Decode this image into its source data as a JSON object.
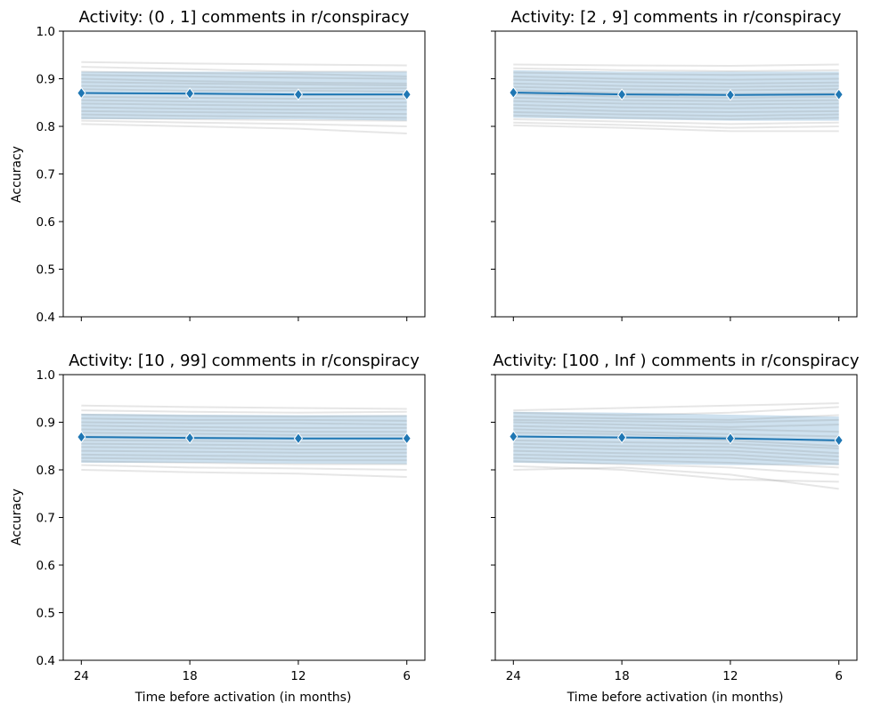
{
  "figure": {
    "xlabel": "Time before activation (in months)",
    "ylabel": "Accuracy",
    "x_ticks": [
      24,
      18,
      12,
      6
    ],
    "y_ticks": [
      "0.4",
      "0.5",
      "0.6",
      "0.7",
      "0.8",
      "0.9",
      "1.0"
    ],
    "ylim": [
      0.4,
      1.0
    ],
    "colors": {
      "mean": "#1f77b4",
      "band": "#1f77b4",
      "individual": "#808080"
    }
  },
  "chart_data": [
    {
      "type": "line",
      "title": "Activity: (0  , 1] comments in r/conspiracy",
      "x": [
        24,
        18,
        12,
        6
      ],
      "mean": [
        0.87,
        0.869,
        0.867,
        0.867
      ],
      "band_lower": [
        0.815,
        0.815,
        0.815,
        0.812
      ],
      "band_upper": [
        0.915,
        0.915,
        0.915,
        0.915
      ],
      "individual_series": [
        [
          0.935,
          0.932,
          0.93,
          0.928
        ],
        [
          0.925,
          0.92,
          0.915,
          0.915
        ],
        [
          0.915,
          0.912,
          0.91,
          0.905
        ],
        [
          0.908,
          0.905,
          0.902,
          0.9
        ],
        [
          0.9,
          0.895,
          0.892,
          0.89
        ],
        [
          0.893,
          0.89,
          0.888,
          0.886
        ],
        [
          0.885,
          0.883,
          0.88,
          0.88
        ],
        [
          0.878,
          0.875,
          0.875,
          0.873
        ],
        [
          0.87,
          0.868,
          0.866,
          0.866
        ],
        [
          0.862,
          0.86,
          0.858,
          0.858
        ],
        [
          0.855,
          0.852,
          0.85,
          0.85
        ],
        [
          0.848,
          0.845,
          0.843,
          0.842
        ],
        [
          0.84,
          0.837,
          0.835,
          0.835
        ],
        [
          0.832,
          0.83,
          0.828,
          0.826
        ],
        [
          0.825,
          0.822,
          0.82,
          0.818
        ],
        [
          0.818,
          0.815,
          0.813,
          0.812
        ],
        [
          0.812,
          0.808,
          0.805,
          0.8
        ],
        [
          0.805,
          0.8,
          0.795,
          0.785
        ]
      ]
    },
    {
      "type": "line",
      "title": "Activity: [2  , 9] comments in r/conspiracy",
      "x": [
        24,
        18,
        12,
        6
      ],
      "mean": [
        0.871,
        0.867,
        0.866,
        0.867
      ],
      "band_lower": [
        0.818,
        0.815,
        0.812,
        0.812
      ],
      "band_upper": [
        0.918,
        0.915,
        0.915,
        0.915
      ],
      "individual_series": [
        [
          0.93,
          0.928,
          0.927,
          0.93
        ],
        [
          0.922,
          0.918,
          0.916,
          0.918
        ],
        [
          0.913,
          0.91,
          0.908,
          0.91
        ],
        [
          0.905,
          0.9,
          0.898,
          0.9
        ],
        [
          0.898,
          0.893,
          0.89,
          0.892
        ],
        [
          0.89,
          0.885,
          0.883,
          0.885
        ],
        [
          0.883,
          0.878,
          0.876,
          0.878
        ],
        [
          0.876,
          0.87,
          0.868,
          0.87
        ],
        [
          0.868,
          0.862,
          0.86,
          0.862
        ],
        [
          0.86,
          0.855,
          0.853,
          0.855
        ],
        [
          0.853,
          0.848,
          0.846,
          0.848
        ],
        [
          0.845,
          0.84,
          0.838,
          0.84
        ],
        [
          0.838,
          0.832,
          0.83,
          0.832
        ],
        [
          0.83,
          0.825,
          0.822,
          0.825
        ],
        [
          0.823,
          0.818,
          0.815,
          0.818
        ],
        [
          0.815,
          0.81,
          0.805,
          0.808
        ],
        [
          0.808,
          0.803,
          0.797,
          0.8
        ],
        [
          0.802,
          0.797,
          0.79,
          0.79
        ]
      ]
    },
    {
      "type": "line",
      "title": "Activity: [10  , 99] comments in r/conspiracy",
      "x": [
        24,
        18,
        12,
        6
      ],
      "mean": [
        0.869,
        0.867,
        0.866,
        0.866
      ],
      "band_lower": [
        0.815,
        0.815,
        0.813,
        0.812
      ],
      "band_upper": [
        0.918,
        0.916,
        0.915,
        0.915
      ],
      "individual_series": [
        [
          0.935,
          0.932,
          0.93,
          0.928
        ],
        [
          0.925,
          0.922,
          0.92,
          0.922
        ],
        [
          0.916,
          0.913,
          0.912,
          0.913
        ],
        [
          0.908,
          0.905,
          0.905,
          0.903
        ],
        [
          0.9,
          0.898,
          0.898,
          0.895
        ],
        [
          0.893,
          0.89,
          0.888,
          0.888
        ],
        [
          0.885,
          0.883,
          0.88,
          0.88
        ],
        [
          0.878,
          0.876,
          0.873,
          0.873
        ],
        [
          0.87,
          0.868,
          0.866,
          0.866
        ],
        [
          0.862,
          0.861,
          0.858,
          0.858
        ],
        [
          0.855,
          0.853,
          0.851,
          0.851
        ],
        [
          0.848,
          0.846,
          0.843,
          0.843
        ],
        [
          0.84,
          0.838,
          0.836,
          0.836
        ],
        [
          0.832,
          0.83,
          0.828,
          0.828
        ],
        [
          0.825,
          0.823,
          0.82,
          0.82
        ],
        [
          0.818,
          0.815,
          0.812,
          0.812
        ],
        [
          0.81,
          0.805,
          0.803,
          0.8
        ],
        [
          0.8,
          0.795,
          0.792,
          0.785
        ]
      ]
    },
    {
      "type": "line",
      "title": "Activity: [100  , Inf ) comments in r/conspiracy",
      "x": [
        24,
        18,
        12,
        6
      ],
      "mean": [
        0.87,
        0.868,
        0.866,
        0.862
      ],
      "band_lower": [
        0.815,
        0.812,
        0.81,
        0.81
      ],
      "band_upper": [
        0.922,
        0.92,
        0.916,
        0.912
      ],
      "individual_series": [
        [
          0.925,
          0.93,
          0.935,
          0.94
        ],
        [
          0.92,
          0.915,
          0.92,
          0.932
        ],
        [
          0.912,
          0.908,
          0.905,
          0.915
        ],
        [
          0.905,
          0.902,
          0.9,
          0.905
        ],
        [
          0.9,
          0.895,
          0.89,
          0.895
        ],
        [
          0.892,
          0.888,
          0.885,
          0.88
        ],
        [
          0.885,
          0.88,
          0.875,
          0.87
        ],
        [
          0.878,
          0.875,
          0.868,
          0.86
        ],
        [
          0.87,
          0.868,
          0.862,
          0.85
        ],
        [
          0.862,
          0.858,
          0.855,
          0.845
        ],
        [
          0.855,
          0.85,
          0.848,
          0.835
        ],
        [
          0.848,
          0.843,
          0.84,
          0.828
        ],
        [
          0.84,
          0.835,
          0.832,
          0.82
        ],
        [
          0.832,
          0.828,
          0.825,
          0.812
        ],
        [
          0.825,
          0.82,
          0.815,
          0.805
        ],
        [
          0.818,
          0.812,
          0.805,
          0.79
        ],
        [
          0.808,
          0.8,
          0.78,
          0.775
        ],
        [
          0.8,
          0.805,
          0.79,
          0.76
        ]
      ]
    }
  ]
}
